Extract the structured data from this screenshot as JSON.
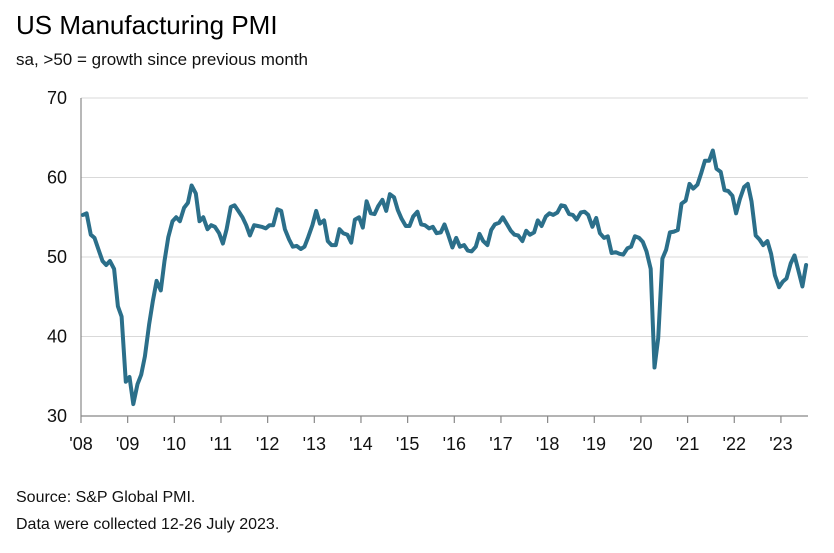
{
  "header": {
    "title": "US Manufacturing PMI",
    "subtitle": "sa, >50 = growth since previous month"
  },
  "footer": {
    "source": "Source: S&P Global PMI.",
    "note": "Data were collected 12-26 July 2023."
  },
  "colors": {
    "line": "#2b6f8a",
    "grid": "#d9d9d9",
    "axis": "#888888"
  },
  "chart_data": {
    "type": "line",
    "title": "US Manufacturing PMI",
    "subtitle": "sa, >50 = growth since previous month",
    "xlabel": "",
    "ylabel": "",
    "ylim": [
      30,
      70
    ],
    "xlim": [
      2008.0,
      2023.58
    ],
    "yticks": [
      "30",
      "40",
      "50",
      "60",
      "70"
    ],
    "xticks": [
      "'08",
      "'09",
      "'10",
      "'11",
      "'12",
      "'13",
      "'14",
      "'15",
      "'16",
      "'17",
      "'18",
      "'19",
      "'20",
      "'21",
      "'22",
      "'23"
    ],
    "grid": "horizontal",
    "legend": "none",
    "series": [
      {
        "x": [
          2008.04,
          2008.12,
          2008.21,
          2008.29,
          2008.37,
          2008.46,
          2008.54,
          2008.62,
          2008.71,
          2008.79,
          2008.87,
          2008.96,
          2009.04,
          2009.12,
          2009.21,
          2009.29,
          2009.37,
          2009.46,
          2009.54,
          2009.62,
          2009.71,
          2009.79,
          2009.87,
          2009.96,
          2010.04,
          2010.12,
          2010.21,
          2010.29,
          2010.37,
          2010.46,
          2010.54,
          2010.62,
          2010.71,
          2010.79,
          2010.87,
          2010.96,
          2011.04,
          2011.12,
          2011.21,
          2011.29,
          2011.37,
          2011.46,
          2011.54,
          2011.62,
          2011.71,
          2011.79,
          2011.87,
          2011.96,
          2012.04,
          2012.12,
          2012.21,
          2012.29,
          2012.37,
          2012.46,
          2012.54,
          2012.62,
          2012.71,
          2012.79,
          2012.87,
          2012.96,
          2013.04,
          2013.12,
          2013.21,
          2013.29,
          2013.37,
          2013.46,
          2013.54,
          2013.62,
          2013.71,
          2013.79,
          2013.87,
          2013.96,
          2014.04,
          2014.12,
          2014.21,
          2014.29,
          2014.37,
          2014.46,
          2014.54,
          2014.62,
          2014.71,
          2014.79,
          2014.87,
          2014.96,
          2015.04,
          2015.12,
          2015.21,
          2015.29,
          2015.37,
          2015.46,
          2015.54,
          2015.62,
          2015.71,
          2015.79,
          2015.87,
          2015.96,
          2016.04,
          2016.12,
          2016.21,
          2016.29,
          2016.37,
          2016.46,
          2016.54,
          2016.62,
          2016.71,
          2016.79,
          2016.87,
          2016.96,
          2017.04,
          2017.12,
          2017.21,
          2017.29,
          2017.37,
          2017.46,
          2017.54,
          2017.62,
          2017.71,
          2017.79,
          2017.87,
          2017.96,
          2018.04,
          2018.12,
          2018.21,
          2018.29,
          2018.37,
          2018.46,
          2018.54,
          2018.62,
          2018.71,
          2018.79,
          2018.87,
          2018.96,
          2019.04,
          2019.12,
          2019.21,
          2019.29,
          2019.37,
          2019.46,
          2019.54,
          2019.62,
          2019.71,
          2019.79,
          2019.87,
          2019.96,
          2020.04,
          2020.12,
          2020.21,
          2020.29,
          2020.37,
          2020.46,
          2020.54,
          2020.62,
          2020.71,
          2020.79,
          2020.87,
          2020.96,
          2021.04,
          2021.12,
          2021.21,
          2021.29,
          2021.37,
          2021.46,
          2021.54,
          2021.62,
          2021.71,
          2021.79,
          2021.87,
          2021.96,
          2022.04,
          2022.12,
          2022.21,
          2022.29,
          2022.37,
          2022.46,
          2022.54,
          2022.62,
          2022.71,
          2022.79,
          2022.87,
          2022.96,
          2023.04,
          2023.12,
          2023.21,
          2023.29,
          2023.37,
          2023.46,
          2023.54
        ],
        "y": [
          55.3,
          55.5,
          52.8,
          52.4,
          51.0,
          49.5,
          49.0,
          49.5,
          48.5,
          43.8,
          42.5,
          34.3,
          34.9,
          31.5,
          34.0,
          35.2,
          37.5,
          41.5,
          44.5,
          47.0,
          45.8,
          49.5,
          52.5,
          54.5,
          55.0,
          54.5,
          56.2,
          56.8,
          59.0,
          58.0,
          54.5,
          55.0,
          53.5,
          54.0,
          53.8,
          53.0,
          51.7,
          53.5,
          56.3,
          56.5,
          55.8,
          55.0,
          54.0,
          52.7,
          54.0,
          53.9,
          53.8,
          53.6,
          54.0,
          54.0,
          56.0,
          55.8,
          53.5,
          52.2,
          51.3,
          51.4,
          51.0,
          51.3,
          52.5,
          54.0,
          55.8,
          54.2,
          54.6,
          52.0,
          51.5,
          51.5,
          53.5,
          53.0,
          52.8,
          51.8,
          54.7,
          55.0,
          53.7,
          57.0,
          55.5,
          55.4,
          56.4,
          57.2,
          55.8,
          57.9,
          57.5,
          55.9,
          54.8,
          53.9,
          53.9,
          55.1,
          55.7,
          54.1,
          54.0,
          53.6,
          53.8,
          53.0,
          53.1,
          54.1,
          52.8,
          51.2,
          52.4,
          51.3,
          51.5,
          50.8,
          50.7,
          51.3,
          52.9,
          52.0,
          51.5,
          53.4,
          54.1,
          54.3,
          55.0,
          54.2,
          53.3,
          52.8,
          52.7,
          52.0,
          53.3,
          52.8,
          53.1,
          54.6,
          53.9,
          55.1,
          55.5,
          55.3,
          55.6,
          56.5,
          56.4,
          55.4,
          55.3,
          54.7,
          55.6,
          55.7,
          55.3,
          53.8,
          54.9,
          53.0,
          52.4,
          52.6,
          50.5,
          50.6,
          50.4,
          50.3,
          51.1,
          51.3,
          52.6,
          52.4,
          51.9,
          50.7,
          48.5,
          36.1,
          39.8,
          49.8,
          50.9,
          53.1,
          53.2,
          53.4,
          56.7,
          57.1,
          59.2,
          58.6,
          59.1,
          60.5,
          62.1,
          62.1,
          63.4,
          61.1,
          60.7,
          58.4,
          58.3,
          57.7,
          55.5,
          57.3,
          58.8,
          59.2,
          57.0,
          52.7,
          52.2,
          51.5,
          52.0,
          50.4,
          47.7,
          46.2,
          46.9,
          47.3,
          49.2,
          50.2,
          48.4,
          46.3,
          49.0
        ]
      }
    ]
  }
}
